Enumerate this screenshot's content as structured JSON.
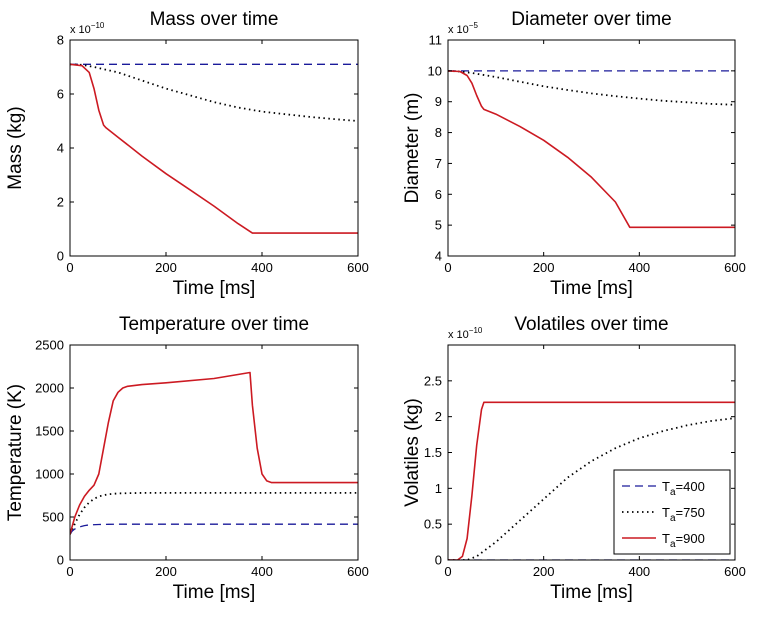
{
  "chart_data": [
    {
      "type": "line",
      "title": "Mass over time",
      "xlabel": "Time [ms]",
      "ylabel": "Mass (kg)",
      "multiplier": "x 10",
      "multiplier_exp": "−10",
      "xlim": [
        0,
        600
      ],
      "ylim": [
        0,
        8
      ],
      "xticks": [
        0,
        200,
        400,
        600
      ],
      "yticks": [
        0,
        2,
        4,
        6,
        8
      ],
      "series": [
        {
          "key": "a400",
          "x": [
            0,
            600
          ],
          "y": [
            7.1,
            7.1
          ]
        },
        {
          "key": "a750",
          "x": [
            0,
            25,
            50,
            100,
            150,
            200,
            250,
            300,
            350,
            400,
            450,
            500,
            550,
            600
          ],
          "y": [
            7.1,
            7.08,
            7.0,
            6.8,
            6.5,
            6.2,
            5.95,
            5.7,
            5.5,
            5.35,
            5.25,
            5.15,
            5.07,
            5.0
          ]
        },
        {
          "key": "a900",
          "x": [
            0,
            25,
            40,
            50,
            60,
            70,
            75,
            100,
            150,
            200,
            250,
            300,
            350,
            380,
            450,
            500,
            600
          ],
          "y": [
            7.1,
            7.05,
            6.8,
            6.2,
            5.4,
            4.85,
            4.75,
            4.4,
            3.7,
            3.05,
            2.45,
            1.85,
            1.2,
            0.85,
            0.85,
            0.85,
            0.85
          ]
        }
      ]
    },
    {
      "type": "line",
      "title": "Diameter over time",
      "xlabel": "Time [ms]",
      "ylabel": "Diameter (m)",
      "multiplier": "x 10",
      "multiplier_exp": "−5",
      "xlim": [
        0,
        600
      ],
      "ylim": [
        4,
        11
      ],
      "xticks": [
        0,
        200,
        400,
        600
      ],
      "yticks": [
        4,
        5,
        6,
        7,
        8,
        9,
        10,
        11
      ],
      "series": [
        {
          "key": "a400",
          "x": [
            0,
            600
          ],
          "y": [
            10,
            10
          ]
        },
        {
          "key": "a750",
          "x": [
            0,
            25,
            50,
            100,
            150,
            200,
            250,
            300,
            350,
            400,
            450,
            500,
            550,
            600
          ],
          "y": [
            10,
            9.98,
            9.93,
            9.8,
            9.65,
            9.5,
            9.38,
            9.27,
            9.18,
            9.1,
            9.03,
            8.98,
            8.93,
            8.9
          ]
        },
        {
          "key": "a900",
          "x": [
            0,
            25,
            40,
            50,
            60,
            70,
            75,
            100,
            150,
            200,
            250,
            300,
            350,
            380,
            450,
            600
          ],
          "y": [
            10,
            9.98,
            9.85,
            9.6,
            9.2,
            8.85,
            8.75,
            8.6,
            8.2,
            7.75,
            7.2,
            6.55,
            5.75,
            4.93,
            4.93,
            4.93
          ]
        }
      ]
    },
    {
      "type": "line",
      "title": "Temperature over time",
      "xlabel": "Time [ms]",
      "ylabel": "Temperature (K)",
      "multiplier": "",
      "multiplier_exp": "",
      "xlim": [
        0,
        600
      ],
      "ylim": [
        0,
        2500
      ],
      "xticks": [
        0,
        200,
        400,
        600
      ],
      "yticks": [
        0,
        500,
        1000,
        1500,
        2000,
        2500
      ],
      "series": [
        {
          "key": "a400",
          "x": [
            0,
            5,
            10,
            20,
            30,
            40,
            60,
            80,
            100,
            600
          ],
          "y": [
            300,
            340,
            360,
            385,
            400,
            408,
            413,
            415,
            416,
            416
          ]
        },
        {
          "key": "a750",
          "x": [
            0,
            10,
            20,
            30,
            40,
            50,
            60,
            80,
            100,
            150,
            600
          ],
          "y": [
            300,
            420,
            530,
            610,
            670,
            710,
            740,
            765,
            775,
            780,
            780
          ]
        },
        {
          "key": "a900",
          "x": [
            0,
            10,
            20,
            30,
            40,
            50,
            60,
            70,
            80,
            90,
            100,
            110,
            120,
            150,
            200,
            300,
            375,
            380,
            390,
            400,
            410,
            420,
            450,
            600
          ],
          "y": [
            300,
            500,
            640,
            740,
            810,
            870,
            1000,
            1300,
            1600,
            1850,
            1950,
            2000,
            2020,
            2040,
            2060,
            2110,
            2180,
            1800,
            1300,
            1000,
            920,
            900,
            900,
            900
          ]
        }
      ]
    },
    {
      "type": "line",
      "title": "Volatiles over time",
      "xlabel": "Time [ms]",
      "ylabel": "Volatiles (kg)",
      "multiplier": "x 10",
      "multiplier_exp": "−10",
      "xlim": [
        0,
        600
      ],
      "ylim": [
        0,
        3
      ],
      "xticks": [
        0,
        200,
        400,
        600
      ],
      "yticks": [
        0,
        0.5,
        1,
        1.5,
        2,
        2.5
      ],
      "yticklabels": [
        "0",
        "0.5",
        "1",
        "1.5",
        "2",
        "2.5"
      ],
      "series": [
        {
          "key": "a400",
          "name": "T",
          "name_sub": "a",
          "name_suffix": "=400",
          "x": [
            0,
            600
          ],
          "y": [
            0,
            0
          ]
        },
        {
          "key": "a750",
          "name": "T",
          "name_sub": "a",
          "name_suffix": "=750",
          "x": [
            0,
            40,
            60,
            100,
            150,
            200,
            250,
            300,
            350,
            400,
            450,
            500,
            550,
            600
          ],
          "y": [
            0,
            0,
            0.05,
            0.25,
            0.55,
            0.85,
            1.15,
            1.38,
            1.56,
            1.7,
            1.8,
            1.88,
            1.94,
            1.98
          ]
        },
        {
          "key": "a900",
          "name": "T",
          "name_sub": "a",
          "name_suffix": "=900",
          "x": [
            0,
            20,
            30,
            40,
            50,
            60,
            70,
            75,
            600
          ],
          "y": [
            0,
            0,
            0.05,
            0.3,
            0.9,
            1.6,
            2.1,
            2.2,
            2.2
          ]
        }
      ],
      "legend": "bottom-right"
    }
  ],
  "styles": {
    "a400": {
      "color": "#1a1a9a",
      "dash": "8,5",
      "width": 1.3
    },
    "a750": {
      "color": "#000000",
      "dash": "1.5,3.5",
      "width": 1.8
    },
    "a900": {
      "color": "#cc1a22",
      "dash": "",
      "width": 1.6
    }
  }
}
